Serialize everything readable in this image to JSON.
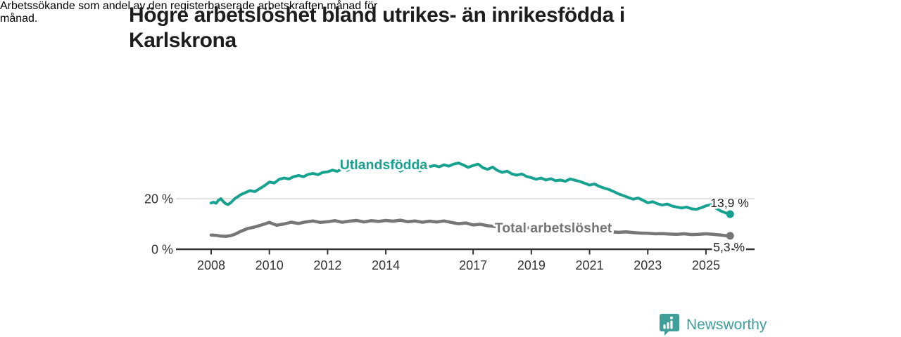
{
  "header": {
    "title_lines": [
      "Högre arbetslöshet bland utrikes- än inrikesfödda i",
      "Karlskrona"
    ],
    "subtitle_lines": [
      "Arbetssökande som andel av den registerbaserade arbetskraften månad för",
      "månad."
    ]
  },
  "footer": {
    "brand": "Newsworthy"
  },
  "colors": {
    "foreign_born": "#17a28f",
    "total": "#767676",
    "axis": "#333333",
    "gridline": "#d8d8d8",
    "annotation": "#1f1f1f",
    "logo_teal": "#3f9e98"
  },
  "chart_data": {
    "type": "line",
    "unit": "%",
    "title": "Högre arbetslöshet bland utrikes- än inrikesfödda i Karlskrona",
    "subtitle": "Arbetssökande som andel av den registerbaserade arbetskraften månad för månad.",
    "x_axis": {
      "ticks": [
        2008,
        2010,
        2012,
        2014,
        2017,
        2019,
        2021,
        2023,
        2025
      ],
      "range": [
        2008,
        2025.9
      ]
    },
    "y_axis": {
      "ticks": [
        {
          "value": 0,
          "label": "0 %"
        },
        {
          "value": 20,
          "label": "20 %"
        }
      ],
      "range": [
        0,
        36
      ],
      "gridlines": [
        20
      ]
    },
    "legend_position": "inline-labels",
    "grid": "horizontal-only",
    "series": [
      {
        "name": "Utlandsfödda",
        "color": "#17a28f",
        "end_label": "13,9 %",
        "end_value": 13.9,
        "points": [
          [
            2008.0,
            18.3
          ],
          [
            2008.08,
            18.6
          ],
          [
            2008.17,
            18.2
          ],
          [
            2008.25,
            19.4
          ],
          [
            2008.33,
            20.0
          ],
          [
            2008.42,
            18.8
          ],
          [
            2008.5,
            18.0
          ],
          [
            2008.58,
            17.7
          ],
          [
            2008.67,
            18.4
          ],
          [
            2008.75,
            19.3
          ],
          [
            2008.83,
            20.2
          ],
          [
            2008.92,
            20.8
          ],
          [
            2009.0,
            21.5
          ],
          [
            2009.17,
            22.4
          ],
          [
            2009.33,
            23.2
          ],
          [
            2009.5,
            22.8
          ],
          [
            2009.67,
            24.0
          ],
          [
            2009.83,
            25.1
          ],
          [
            2010.0,
            26.6
          ],
          [
            2010.17,
            26.2
          ],
          [
            2010.33,
            27.6
          ],
          [
            2010.5,
            28.2
          ],
          [
            2010.67,
            27.8
          ],
          [
            2010.83,
            28.7
          ],
          [
            2011.0,
            29.2
          ],
          [
            2011.17,
            28.7
          ],
          [
            2011.33,
            29.6
          ],
          [
            2011.5,
            30.0
          ],
          [
            2011.67,
            29.5
          ],
          [
            2011.83,
            30.4
          ],
          [
            2012.0,
            30.6
          ],
          [
            2012.17,
            31.3
          ],
          [
            2012.33,
            30.8
          ],
          [
            2012.5,
            31.8
          ],
          [
            2012.67,
            31.2
          ],
          [
            2012.83,
            32.0
          ],
          [
            2013.0,
            32.3
          ],
          [
            2013.17,
            31.7
          ],
          [
            2013.33,
            32.5
          ],
          [
            2013.5,
            32.0
          ],
          [
            2013.67,
            32.8
          ],
          [
            2013.83,
            32.4
          ],
          [
            2014.0,
            33.0
          ],
          [
            2014.17,
            32.3
          ],
          [
            2014.33,
            32.9
          ],
          [
            2014.5,
            30.9
          ],
          [
            2014.67,
            32.1
          ],
          [
            2014.83,
            32.9
          ],
          [
            2015.0,
            32.5
          ],
          [
            2015.17,
            31.0
          ],
          [
            2015.33,
            31.9
          ],
          [
            2015.5,
            32.7
          ],
          [
            2015.67,
            33.1
          ],
          [
            2015.83,
            32.6
          ],
          [
            2016.0,
            33.4
          ],
          [
            2016.17,
            32.9
          ],
          [
            2016.33,
            33.7
          ],
          [
            2016.5,
            34.1
          ],
          [
            2016.67,
            33.3
          ],
          [
            2016.83,
            32.4
          ],
          [
            2017.0,
            33.1
          ],
          [
            2017.17,
            33.7
          ],
          [
            2017.33,
            32.3
          ],
          [
            2017.5,
            31.6
          ],
          [
            2017.67,
            32.5
          ],
          [
            2017.83,
            31.2
          ],
          [
            2018.0,
            30.4
          ],
          [
            2018.17,
            30.9
          ],
          [
            2018.33,
            29.8
          ],
          [
            2018.5,
            29.3
          ],
          [
            2018.67,
            29.8
          ],
          [
            2018.83,
            28.8
          ],
          [
            2019.0,
            28.3
          ],
          [
            2019.17,
            27.7
          ],
          [
            2019.33,
            28.2
          ],
          [
            2019.5,
            27.4
          ],
          [
            2019.67,
            27.9
          ],
          [
            2019.83,
            27.1
          ],
          [
            2020.0,
            27.4
          ],
          [
            2020.17,
            26.9
          ],
          [
            2020.33,
            27.8
          ],
          [
            2020.5,
            27.3
          ],
          [
            2020.67,
            26.8
          ],
          [
            2020.83,
            26.1
          ],
          [
            2021.0,
            25.4
          ],
          [
            2021.17,
            25.8
          ],
          [
            2021.33,
            24.9
          ],
          [
            2021.5,
            24.2
          ],
          [
            2021.67,
            23.6
          ],
          [
            2021.83,
            22.8
          ],
          [
            2022.0,
            21.9
          ],
          [
            2022.17,
            21.2
          ],
          [
            2022.33,
            20.5
          ],
          [
            2022.5,
            19.8
          ],
          [
            2022.67,
            20.3
          ],
          [
            2022.83,
            19.4
          ],
          [
            2023.0,
            18.4
          ],
          [
            2023.17,
            18.8
          ],
          [
            2023.33,
            18.0
          ],
          [
            2023.5,
            17.5
          ],
          [
            2023.67,
            17.9
          ],
          [
            2023.83,
            17.1
          ],
          [
            2024.0,
            16.7
          ],
          [
            2024.17,
            16.3
          ],
          [
            2024.33,
            16.7
          ],
          [
            2024.5,
            16.0
          ],
          [
            2024.67,
            15.8
          ],
          [
            2024.83,
            16.4
          ],
          [
            2025.0,
            17.2
          ],
          [
            2025.17,
            17.6
          ],
          [
            2025.33,
            16.3
          ],
          [
            2025.5,
            15.2
          ],
          [
            2025.67,
            14.4
          ],
          [
            2025.83,
            13.9
          ]
        ]
      },
      {
        "name": "Total arbetslöshet",
        "color": "#767676",
        "end_label": "5,3 %",
        "end_value": 5.3,
        "points": [
          [
            2008.0,
            5.6
          ],
          [
            2008.17,
            5.5
          ],
          [
            2008.33,
            5.2
          ],
          [
            2008.5,
            5.1
          ],
          [
            2008.67,
            5.4
          ],
          [
            2008.83,
            6.0
          ],
          [
            2009.0,
            7.0
          ],
          [
            2009.25,
            8.2
          ],
          [
            2009.5,
            8.8
          ],
          [
            2009.75,
            9.7
          ],
          [
            2010.0,
            10.6
          ],
          [
            2010.25,
            9.5
          ],
          [
            2010.5,
            10.0
          ],
          [
            2010.75,
            10.7
          ],
          [
            2011.0,
            10.2
          ],
          [
            2011.25,
            10.8
          ],
          [
            2011.5,
            11.2
          ],
          [
            2011.75,
            10.6
          ],
          [
            2012.0,
            10.9
          ],
          [
            2012.25,
            11.3
          ],
          [
            2012.5,
            10.7
          ],
          [
            2012.75,
            11.1
          ],
          [
            2013.0,
            11.4
          ],
          [
            2013.25,
            10.8
          ],
          [
            2013.5,
            11.3
          ],
          [
            2013.75,
            11.0
          ],
          [
            2014.0,
            11.4
          ],
          [
            2014.25,
            11.1
          ],
          [
            2014.5,
            11.5
          ],
          [
            2014.75,
            10.9
          ],
          [
            2015.0,
            11.2
          ],
          [
            2015.25,
            10.7
          ],
          [
            2015.5,
            11.1
          ],
          [
            2015.75,
            10.8
          ],
          [
            2016.0,
            11.2
          ],
          [
            2016.25,
            10.6
          ],
          [
            2016.5,
            10.1
          ],
          [
            2016.75,
            10.4
          ],
          [
            2017.0,
            9.6
          ],
          [
            2017.25,
            9.9
          ],
          [
            2017.5,
            9.3
          ],
          [
            2017.75,
            9.0
          ],
          [
            2018.0,
            9.2
          ],
          [
            2018.25,
            8.8
          ],
          [
            2018.5,
            8.5
          ],
          [
            2018.75,
            8.7
          ],
          [
            2019.0,
            8.3
          ],
          [
            2019.25,
            8.0
          ],
          [
            2019.5,
            8.2
          ],
          [
            2019.75,
            7.9
          ],
          [
            2020.0,
            8.1
          ],
          [
            2020.25,
            8.8
          ],
          [
            2020.5,
            8.5
          ],
          [
            2020.75,
            8.1
          ],
          [
            2021.0,
            7.8
          ],
          [
            2021.25,
            7.5
          ],
          [
            2021.5,
            7.2
          ],
          [
            2021.75,
            6.9
          ],
          [
            2022.0,
            6.7
          ],
          [
            2022.25,
            6.9
          ],
          [
            2022.5,
            6.6
          ],
          [
            2022.75,
            6.4
          ],
          [
            2023.0,
            6.3
          ],
          [
            2023.25,
            6.1
          ],
          [
            2023.5,
            6.2
          ],
          [
            2023.75,
            6.0
          ],
          [
            2024.0,
            5.9
          ],
          [
            2024.25,
            6.1
          ],
          [
            2024.5,
            5.8
          ],
          [
            2024.75,
            5.9
          ],
          [
            2025.0,
            6.1
          ],
          [
            2025.25,
            5.9
          ],
          [
            2025.5,
            5.6
          ],
          [
            2025.67,
            5.4
          ],
          [
            2025.83,
            5.3
          ]
        ]
      }
    ]
  }
}
